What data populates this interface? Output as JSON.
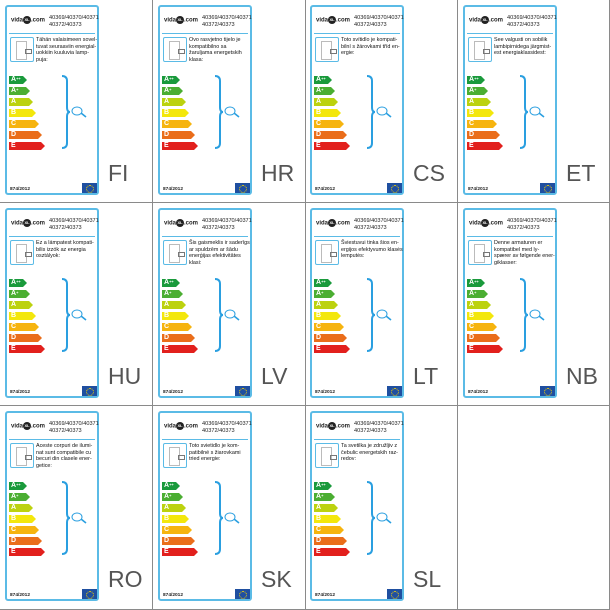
{
  "logo": {
    "text_left": "vida",
    "text_mid": "XL",
    "text_right": ".com"
  },
  "product_codes": [
    "40369/40370/40371",
    "40372/40373"
  ],
  "energy_classes": [
    {
      "letter": "A",
      "sup": "++",
      "color": "#1a9a3c"
    },
    {
      "letter": "A",
      "sup": "+",
      "color": "#4bae32"
    },
    {
      "letter": "A",
      "sup": "",
      "color": "#bcd20f"
    },
    {
      "letter": "B",
      "sup": "",
      "color": "#f3e70c"
    },
    {
      "letter": "C",
      "sup": "",
      "color": "#f6b40f"
    },
    {
      "letter": "D",
      "sup": "",
      "color": "#ea6d1a"
    },
    {
      "letter": "E",
      "sup": "",
      "color": "#e2201d"
    }
  ],
  "regulation": "874/2012",
  "accent_color": "#5bbbe6",
  "labels": [
    {
      "lang": "FI",
      "text": "Tähän valaisimeen sovel-tuvat seuraaviin energial-uokkiin kuuluvia lamp-puja:"
    },
    {
      "lang": "HR",
      "text": "Ovo rasvjetno tijelo je kompatibilno sa žaruljama energetskih klasa:"
    },
    {
      "lang": "CS",
      "text": "Toto svítidlo je kompati-bilní s žárovkami tříd en-ergie:"
    },
    {
      "lang": "ET",
      "text": "See valgusti on sobilik lambipirnidega järgmist-est energiaklassidest:"
    },
    {
      "lang": "HU",
      "text": "Ez a lámpatest kompati-bilis izzók az energia osztályok:"
    },
    {
      "lang": "LV",
      "text": "Šis gaismeklis ir saderīgs ar spuldzēm ar šādu enerģijas efektivitātes klasi:"
    },
    {
      "lang": "LT",
      "text": "Šviestuvui tinka šios en-ergijos efektyvumo klasės lemputės:"
    },
    {
      "lang": "NB",
      "text": "Denne armaturen er kompatibel med ly-spærer av følgende ener-giklasser:"
    },
    {
      "lang": "RO",
      "text": "Aceste corpuri de ilumi-nat sunt compatibile cu becuri din clasele ener-getice:"
    },
    {
      "lang": "SK",
      "text": "Toto svietidlo je kom-patibilné s žiarovkami tried energie:"
    },
    {
      "lang": "SL",
      "text": "Ta svetilka je združljiv z čebulic energetskih raz-redov:"
    }
  ]
}
